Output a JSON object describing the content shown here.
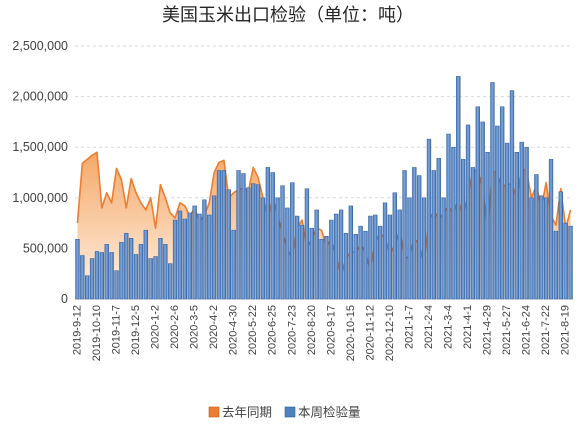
{
  "chart_data": {
    "type": "bar",
    "title": "美国玉米出口检验（单位：吨）",
    "categories": [
      "2019-9-12",
      "",
      "",
      "",
      "2019-10-10",
      "",
      "",
      "",
      "2019-11-7",
      "",
      "",
      "",
      "2019-12-5",
      "",
      "",
      "",
      "2020-1-2",
      "",
      "",
      "",
      "2020-2-6",
      "",
      "",
      "",
      "2020-3-5",
      "",
      "",
      "",
      "2020-4-2",
      "",
      "",
      "",
      "2020-4-30",
      "",
      "",
      "",
      "2020-5-22",
      "",
      "",
      "",
      "2020-6-25",
      "",
      "",
      "",
      "2020-7-23",
      "",
      "",
      "",
      "2020-8-20",
      "",
      "",
      "",
      "2020-9-17",
      "",
      "",
      "",
      "2020-10-15",
      "",
      "",
      "",
      "2020-11-12",
      "",
      "",
      "",
      "2020-12-10",
      "",
      "",
      "",
      "2021-1-7",
      "",
      "",
      "",
      "2021-2-4",
      "",
      "",
      "",
      "2021-3-4",
      "",
      "",
      "",
      "2021-4-1",
      "",
      "",
      "",
      "2021-4-29",
      "",
      "",
      "",
      "2021-5-27",
      "",
      "",
      "",
      "2021-6-24",
      "",
      "",
      "",
      "2021-7-22",
      "",
      "",
      "",
      "2021-8-19",
      ""
    ],
    "ylim": [
      0,
      2500000
    ],
    "y_ticks": {
      "values": [
        0,
        500000,
        1000000,
        1500000,
        2000000,
        2500000
      ],
      "labels": [
        "0",
        "500,000",
        "1,000,000",
        "1,500,000",
        "2,000,000",
        "2,500,000"
      ]
    },
    "grid": true,
    "legend_position": "bottom",
    "series": [
      {
        "name": "去年同期",
        "type": "area",
        "color": "#ED7D31",
        "values": [
          750000,
          1340000,
          1380000,
          1420000,
          1450000,
          900000,
          1050000,
          950000,
          1290000,
          1180000,
          900000,
          1190000,
          1050000,
          950000,
          880000,
          1000000,
          700000,
          1130000,
          1000000,
          850000,
          800000,
          950000,
          920000,
          820000,
          900000,
          760000,
          830000,
          950000,
          1250000,
          1350000,
          1370000,
          1000000,
          1050000,
          1080000,
          1100000,
          1060000,
          1300000,
          1200000,
          1000000,
          800000,
          1000000,
          820000,
          650000,
          500000,
          400000,
          700000,
          780000,
          500000,
          600000,
          700000,
          680000,
          520000,
          590000,
          430000,
          230000,
          400000,
          470000,
          460000,
          540000,
          460000,
          280000,
          560000,
          650000,
          600000,
          440000,
          540000,
          680000,
          400000,
          420000,
          600000,
          540000,
          350000,
          780000,
          870000,
          790000,
          850000,
          920000,
          840000,
          980000,
          830000,
          1020000,
          1270000,
          1270000,
          1080000,
          680000,
          1270000,
          1240000,
          1100000,
          1140000,
          1130000,
          1000000,
          1300000,
          1250000,
          1000000,
          1120000,
          900000,
          1150000,
          820000,
          730000,
          1090000,
          700000,
          880000
        ]
      },
      {
        "name": "本周检验量",
        "type": "bar",
        "color": "#4F81BD",
        "values": [
          590000,
          430000,
          230000,
          400000,
          470000,
          460000,
          540000,
          460000,
          280000,
          560000,
          650000,
          600000,
          440000,
          540000,
          680000,
          400000,
          420000,
          600000,
          540000,
          350000,
          780000,
          870000,
          790000,
          850000,
          920000,
          840000,
          980000,
          830000,
          1020000,
          1270000,
          1270000,
          1080000,
          680000,
          1270000,
          1240000,
          1100000,
          1140000,
          1130000,
          1000000,
          1300000,
          1250000,
          1000000,
          1120000,
          900000,
          1150000,
          820000,
          730000,
          1090000,
          700000,
          880000,
          590000,
          620000,
          780000,
          840000,
          880000,
          650000,
          920000,
          640000,
          720000,
          670000,
          820000,
          830000,
          720000,
          950000,
          830000,
          1050000,
          880000,
          1270000,
          1000000,
          1300000,
          1220000,
          1000000,
          1580000,
          1270000,
          1390000,
          1000000,
          1630000,
          1500000,
          2200000,
          1380000,
          1720000,
          1300000,
          1900000,
          1750000,
          1450000,
          2140000,
          1710000,
          1900000,
          1540000,
          2060000,
          1450000,
          1550000,
          1500000,
          1000000,
          1230000,
          1020000,
          1000000,
          1380000,
          670000,
          1060000,
          750000,
          720000
        ]
      }
    ]
  }
}
